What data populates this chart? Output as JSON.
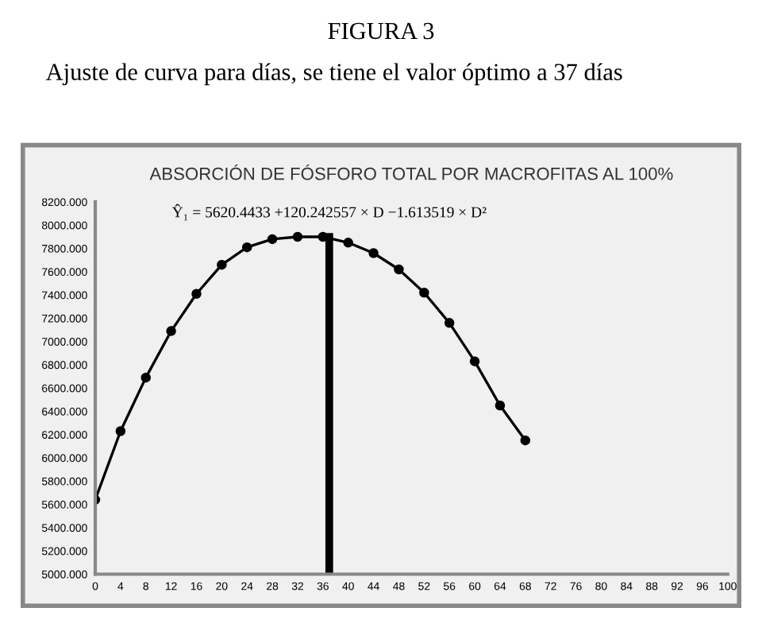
{
  "chart_data": {
    "type": "line",
    "title": "ABSORCIÓN DE FÓSFORO TOTAL POR MACROFITAS AL 100%",
    "annotations": [
      "FIGURA 3",
      "Ajuste de curva para días, se tiene el valor óptimo a 37 días",
      {
        "text": "Ŷ₁ = 5620.4433 +120.242557 × D −1.613519 × D²",
        "x": 36,
        "y": 7900
      }
    ],
    "x": [
      0,
      4,
      8,
      12,
      16,
      20,
      24,
      28,
      32,
      36,
      40,
      44,
      48,
      52,
      56,
      60,
      64,
      68
    ],
    "series": [
      {
        "color": "#000000",
        "values": [
          5640,
          6230,
          6690,
          7090,
          7410,
          7660,
          7810,
          7880,
          7900,
          7900,
          7850,
          7760,
          7620,
          7420,
          7160,
          6830,
          6450,
          6150
        ]
      }
    ],
    "xlim": [
      0,
      100
    ],
    "xticks": [
      0,
      4,
      8,
      12,
      16,
      20,
      24,
      28,
      32,
      36,
      40,
      44,
      48,
      52,
      56,
      60,
      64,
      68,
      72,
      76,
      80,
      84,
      88,
      92,
      96,
      100
    ],
    "ylim": [
      5000,
      8200
    ],
    "yticks": [
      {
        "value": 5000,
        "label": "5000.000"
      },
      {
        "value": 5200,
        "label": "5200.000"
      },
      {
        "value": 5400,
        "label": "5400.000"
      },
      {
        "value": 5600,
        "label": "5600.000"
      },
      {
        "value": 5800,
        "label": "5800.000"
      },
      {
        "value": 6000,
        "label": "6000.000"
      },
      {
        "value": 6200,
        "label": "6200.000"
      },
      {
        "value": 6400,
        "label": "6400.000"
      },
      {
        "value": 6600,
        "label": "6600.000"
      },
      {
        "value": 6800,
        "label": "6800.000"
      },
      {
        "value": 7000,
        "label": "7000.000"
      },
      {
        "value": 7200,
        "label": "7200.000"
      },
      {
        "value": 7400,
        "label": "7400.000"
      },
      {
        "value": 7600,
        "label": "7600.000"
      },
      {
        "value": 7800,
        "label": "7800.000"
      },
      {
        "value": 8000,
        "label": "8000.000"
      },
      {
        "value": 8200,
        "label": "8200.000"
      }
    ],
    "ref_lines": [
      {
        "axis": "x",
        "value": 37,
        "color": "#000000"
      }
    ],
    "grid": false,
    "legend": false,
    "marker": "circle",
    "line_style": "solid"
  }
}
